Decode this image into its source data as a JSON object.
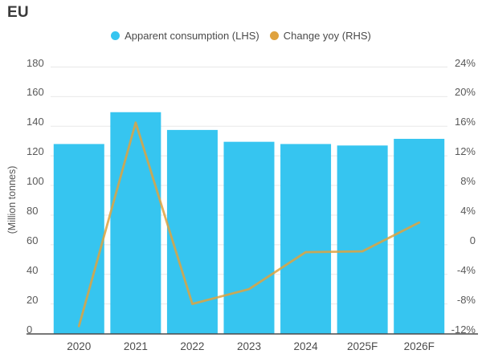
{
  "chart_data": {
    "type": "bar",
    "title": "EU",
    "categories": [
      "2020",
      "2021",
      "2022",
      "2023",
      "2024",
      "2025F",
      "2026F"
    ],
    "series": [
      {
        "name": "Apparent consumption (LHS)",
        "type": "bar",
        "axis": "left",
        "color": "#36C5F0",
        "values": [
          128,
          149.5,
          137.5,
          129.5,
          128,
          127,
          131.5
        ]
      },
      {
        "name": "Change yoy (RHS)",
        "type": "line",
        "axis": "right",
        "color": "#DFA23E",
        "values": [
          -11,
          16.5,
          -8,
          -6,
          -1,
          -0.9,
          3
        ]
      }
    ],
    "ylabel": "(Million tonnes)",
    "y_left": {
      "min": 0,
      "max": 180,
      "step": 20
    },
    "y_right": {
      "min": -12,
      "max": 24,
      "step": 4,
      "suffix": "%"
    },
    "y_left_ticks": [
      "180",
      "160",
      "140",
      "120",
      "100",
      "80",
      "60",
      "40",
      "20",
      "0"
    ],
    "y_right_ticks": [
      "24%",
      "20%",
      "16%",
      "12%",
      "8%",
      "4%",
      "0",
      "-4%",
      "-8%",
      "-12%"
    ],
    "grid": true,
    "legend_position": "top-center",
    "colors": {
      "grid_line": "#e8e8e8",
      "axis_line": "#4a4a4a",
      "tick_text": "#595959",
      "title_text": "#3a3a3a"
    }
  }
}
